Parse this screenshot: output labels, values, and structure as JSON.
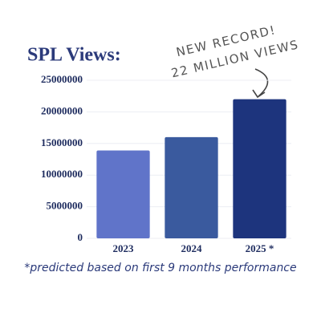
{
  "chart_data": {
    "type": "bar",
    "title": "SPL Views:",
    "categories": [
      "2023",
      "2024",
      "2025 *"
    ],
    "values": [
      13900000,
      16000000,
      22000000
    ],
    "colors": [
      "#6074c9",
      "#3a5a9e",
      "#1d347d"
    ],
    "ylim": [
      0,
      25000000
    ],
    "yticks": [
      0,
      5000000,
      10000000,
      15000000,
      20000000,
      25000000
    ],
    "grid": true,
    "annotation": [
      "NEW RECORD!",
      "22 MILLION VIEWS"
    ],
    "footnote": "*predicted based on first 9 months performance"
  }
}
